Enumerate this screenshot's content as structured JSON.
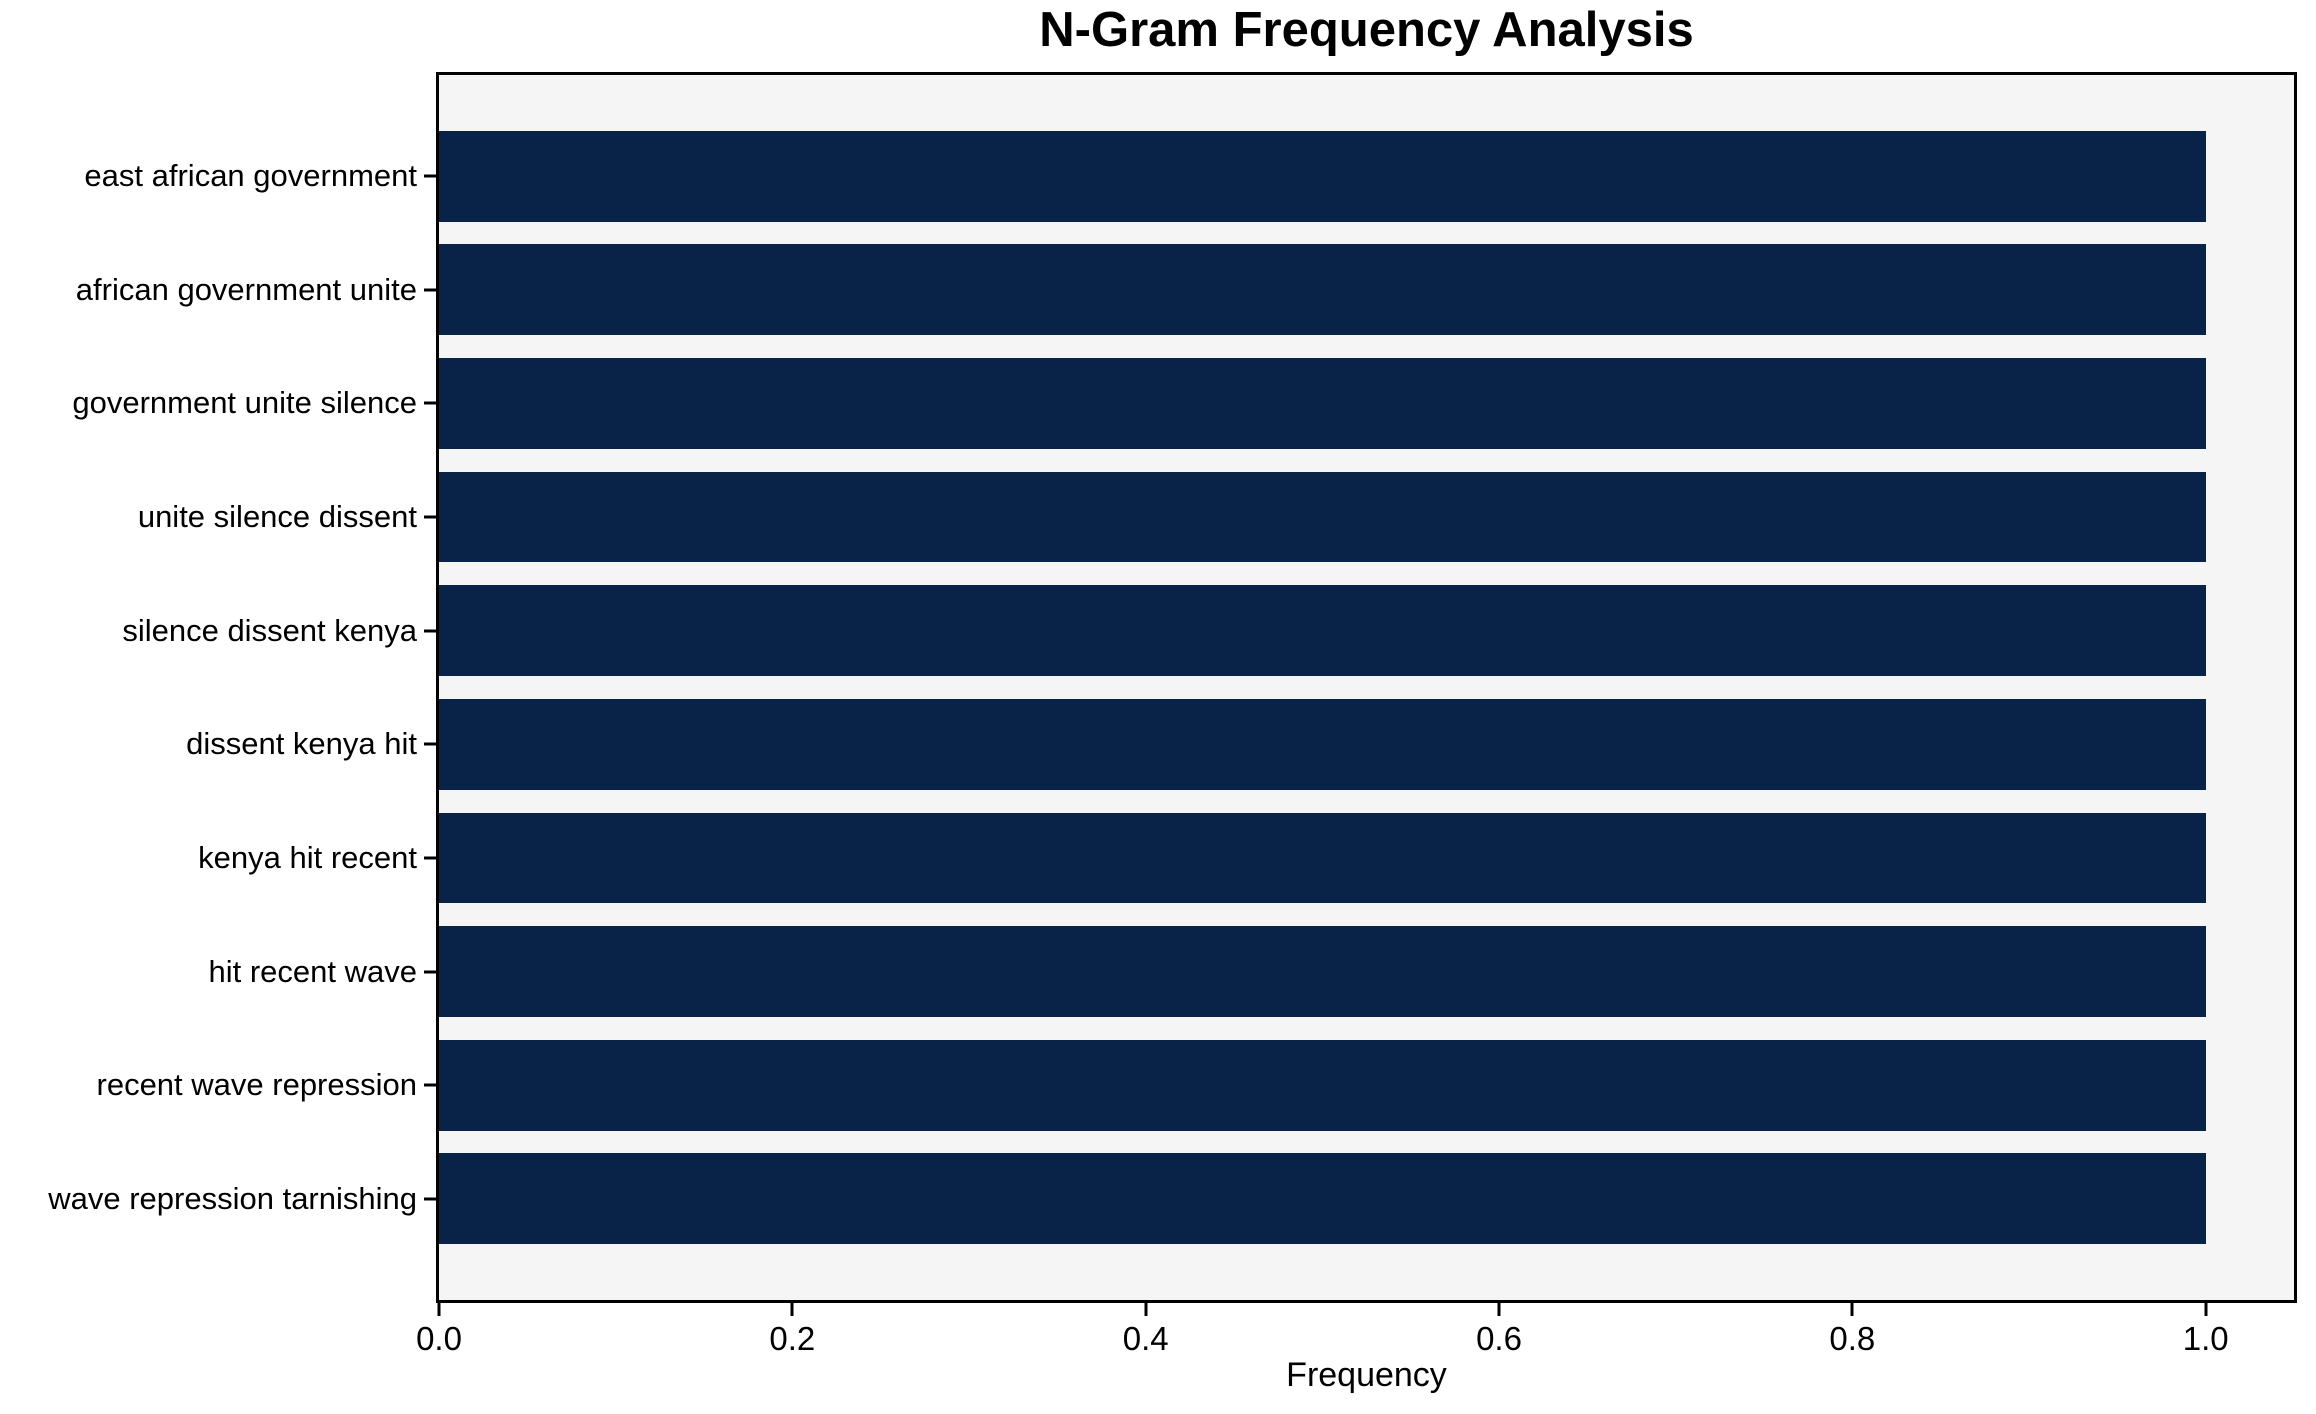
{
  "chart_data": {
    "type": "bar",
    "orientation": "horizontal",
    "title": "N-Gram Frequency Analysis",
    "xlabel": "Frequency",
    "ylabel": "",
    "categories": [
      "east african government",
      "african government unite",
      "government unite silence",
      "unite silence dissent",
      "silence dissent kenya",
      "dissent kenya hit",
      "kenya hit recent",
      "hit recent wave",
      "recent wave repression",
      "wave repression tarnishing"
    ],
    "values": [
      1.0,
      1.0,
      1.0,
      1.0,
      1.0,
      1.0,
      1.0,
      1.0,
      1.0,
      1.0
    ],
    "xlim": [
      0,
      1.05
    ],
    "xticks": [
      "0.0",
      "0.2",
      "0.4",
      "0.6",
      "0.8",
      "1.0"
    ],
    "grid": false,
    "legend": null,
    "bar_height_fraction": 0.8,
    "colors": {
      "bar": "#082347",
      "plot_background": "#f5f5f5",
      "figure_background": "#ffffff",
      "spine": "#000000",
      "text": "#000000"
    }
  }
}
